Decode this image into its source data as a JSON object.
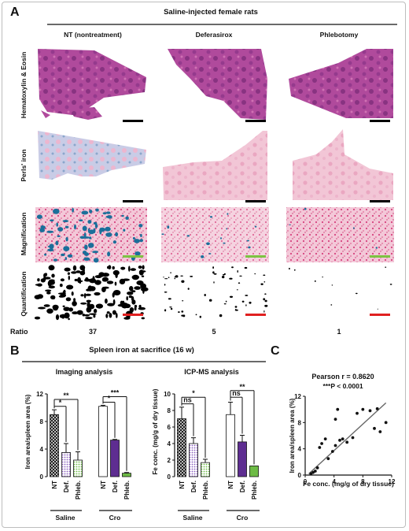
{
  "panels": {
    "a": "A",
    "b": "B",
    "c": "C"
  },
  "panel_a": {
    "title": "Saline-injected female rats",
    "columns": [
      "NT (nontreatment)",
      "Deferasirox",
      "Phlebotomy"
    ],
    "rows": [
      "Hematoxylin & Eosin",
      "Perls' iron",
      "Magnification",
      "Quantification"
    ],
    "ratio_label": "Ratio",
    "ratios": [
      "37",
      "5",
      "1"
    ],
    "colors": {
      "he": "#b04a9c",
      "he_dark": "#7a2a78",
      "perls": "#f2c6d6",
      "perls_blue": "#7c9ec6",
      "iron_blue": "#1b6f9a",
      "scale_black": "#000000",
      "scale_green": "#7dc242",
      "scale_red": "#e02020"
    }
  },
  "panel_b": {
    "title": "Spleen iron at sacrifice (16 w)",
    "groups": [
      "Saline",
      "Cro"
    ],
    "bar_fills": {
      "NT": "crosshatch-black",
      "Def.": "dotted-purple",
      "Phleb.": "dotted-green",
      "solid_cro": "#5e2d91",
      "solid_cro_phleb": "#6dbb45"
    },
    "significance_left": [
      "**",
      "*",
      "***",
      "*"
    ],
    "significance_right": [
      "*",
      "ns",
      "ns",
      "**"
    ]
  },
  "chart_data": [
    {
      "type": "bar",
      "title": "Imaging analysis",
      "xlabel": "",
      "ylabel": "Iron area/spleen area (%)",
      "ylim": [
        0,
        12
      ],
      "yticks": [
        "0",
        "4",
        "8",
        "12"
      ],
      "categories": [
        "NT",
        "Def.",
        "Phleb.",
        "NT",
        "Def.",
        "Phleb."
      ],
      "groups": [
        "Saline",
        "Cro"
      ],
      "values": [
        9.0,
        3.5,
        2.4,
        10.2,
        5.3,
        0.5
      ],
      "errors": [
        0.7,
        1.3,
        1.2,
        0.15,
        0.1,
        0.1
      ]
    },
    {
      "type": "bar",
      "title": "ICP-MS analysis",
      "xlabel": "",
      "ylabel": "Fe conc. (mg/g of dry tissue)",
      "ylim": [
        0,
        10
      ],
      "yticks": [
        "0",
        "2",
        "4",
        "6",
        "8",
        "10"
      ],
      "categories": [
        "NT",
        "Def.",
        "Phleb.",
        "NT",
        "Def.",
        "Phleb."
      ],
      "groups": [
        "Saline",
        "Cro"
      ],
      "values": [
        7.0,
        4.0,
        1.7,
        7.5,
        4.2,
        1.3
      ],
      "errors": [
        1.4,
        0.7,
        0.4,
        1.5,
        0.8,
        0.0
      ]
    },
    {
      "type": "scatter",
      "title": "Pearson r = 0.8620",
      "subtitle": "***P < 0.0001",
      "xlabel": "Fe conc. (mg/g of dry tissue)",
      "ylabel": "Iron area/spleen area (%)",
      "xlim": [
        0,
        12
      ],
      "ylim": [
        0,
        12
      ],
      "xticks": [
        "0",
        "4",
        "8",
        "12"
      ],
      "yticks": [
        "0",
        "4",
        "8",
        "12"
      ],
      "points": [
        [
          0.8,
          0.2
        ],
        [
          1.1,
          0.4
        ],
        [
          1.4,
          0.6
        ],
        [
          1.7,
          1.1
        ],
        [
          2.0,
          4.2
        ],
        [
          2.3,
          4.8
        ],
        [
          2.8,
          5.5
        ],
        [
          3.2,
          2.5
        ],
        [
          3.8,
          3.6
        ],
        [
          4.2,
          4.5
        ],
        [
          4.2,
          8.5
        ],
        [
          4.5,
          10.0
        ],
        [
          4.8,
          5.3
        ],
        [
          5.2,
          5.5
        ],
        [
          5.8,
          5.0
        ],
        [
          6.6,
          5.7
        ],
        [
          7.2,
          9.4
        ],
        [
          8.0,
          10.0
        ],
        [
          9.0,
          9.8
        ],
        [
          9.6,
          7.1
        ],
        [
          10.0,
          10.1
        ],
        [
          10.4,
          6.6
        ],
        [
          11.2,
          8.0
        ]
      ],
      "fit": {
        "x": [
          0.5,
          11.2
        ],
        "y": [
          0.2,
          11.0
        ]
      }
    }
  ]
}
